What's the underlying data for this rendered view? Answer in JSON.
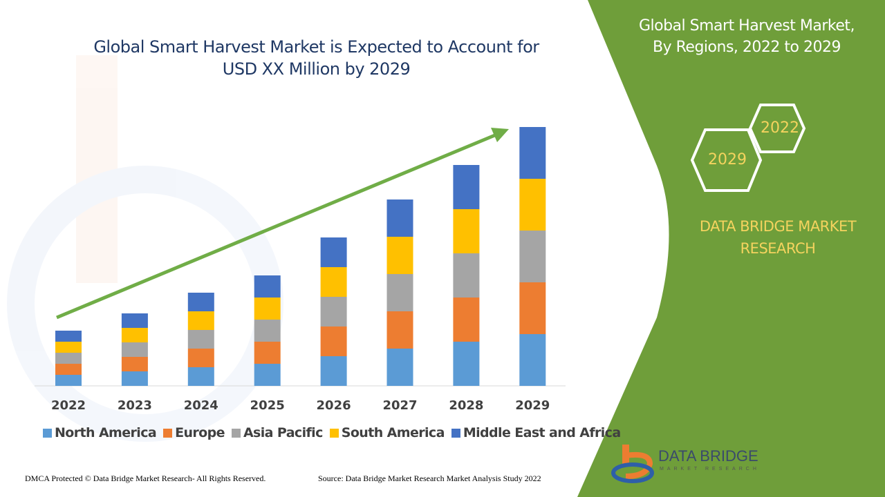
{
  "header": {
    "title_line1": "Global Smart Harvest Market is Expected to Account for",
    "title_line2": "USD XX Million by 2029"
  },
  "side_panel": {
    "title_line1": "Global Smart Harvest Market,",
    "title_line2": "By Regions, 2022 to 2029",
    "hex_start": "2022",
    "hex_end": "2029",
    "brand_line1": "DATA BRIDGE MARKET",
    "brand_line2": "RESEARCH",
    "logo_text": "DATA BRIDGE",
    "logo_subtext": "MARKET RESEARCH",
    "panel_color": "#6f9e3a"
  },
  "footer": {
    "copyright": "DMCA Protected © Data Bridge Market Research- All Rights Reserved.",
    "source": "Source: Data Bridge Market Research Market Analysis Study 2022"
  },
  "chart_data": {
    "type": "bar",
    "stacked": true,
    "title": "Global Smart Harvest Market is Expected to Account for USD XX Million by 2029",
    "xlabel": "",
    "ylabel": "",
    "categories": [
      "2022",
      "2023",
      "2024",
      "2025",
      "2026",
      "2027",
      "2028",
      "2029"
    ],
    "ylim": [
      0,
      40
    ],
    "grid": false,
    "legend_position": "bottom",
    "trend_arrow": true,
    "series": [
      {
        "name": "North America",
        "color": "#5b9bd5",
        "values": [
          1.6,
          2.1,
          2.7,
          3.2,
          4.3,
          5.4,
          6.4,
          7.5
        ]
      },
      {
        "name": "Europe",
        "color": "#ed7d31",
        "values": [
          1.6,
          2.1,
          2.7,
          3.2,
          4.3,
          5.4,
          6.4,
          7.5
        ]
      },
      {
        "name": "Asia Pacific",
        "color": "#a5a5a5",
        "values": [
          1.6,
          2.1,
          2.7,
          3.2,
          4.3,
          5.4,
          6.4,
          7.5
        ]
      },
      {
        "name": "South America",
        "color": "#ffc000",
        "values": [
          1.6,
          2.1,
          2.7,
          3.2,
          4.3,
          5.4,
          6.4,
          7.5
        ]
      },
      {
        "name": "Middle East and Africa",
        "color": "#4472c4",
        "values": [
          1.6,
          2.1,
          2.7,
          3.2,
          4.3,
          5.4,
          6.4,
          7.5
        ]
      }
    ]
  }
}
